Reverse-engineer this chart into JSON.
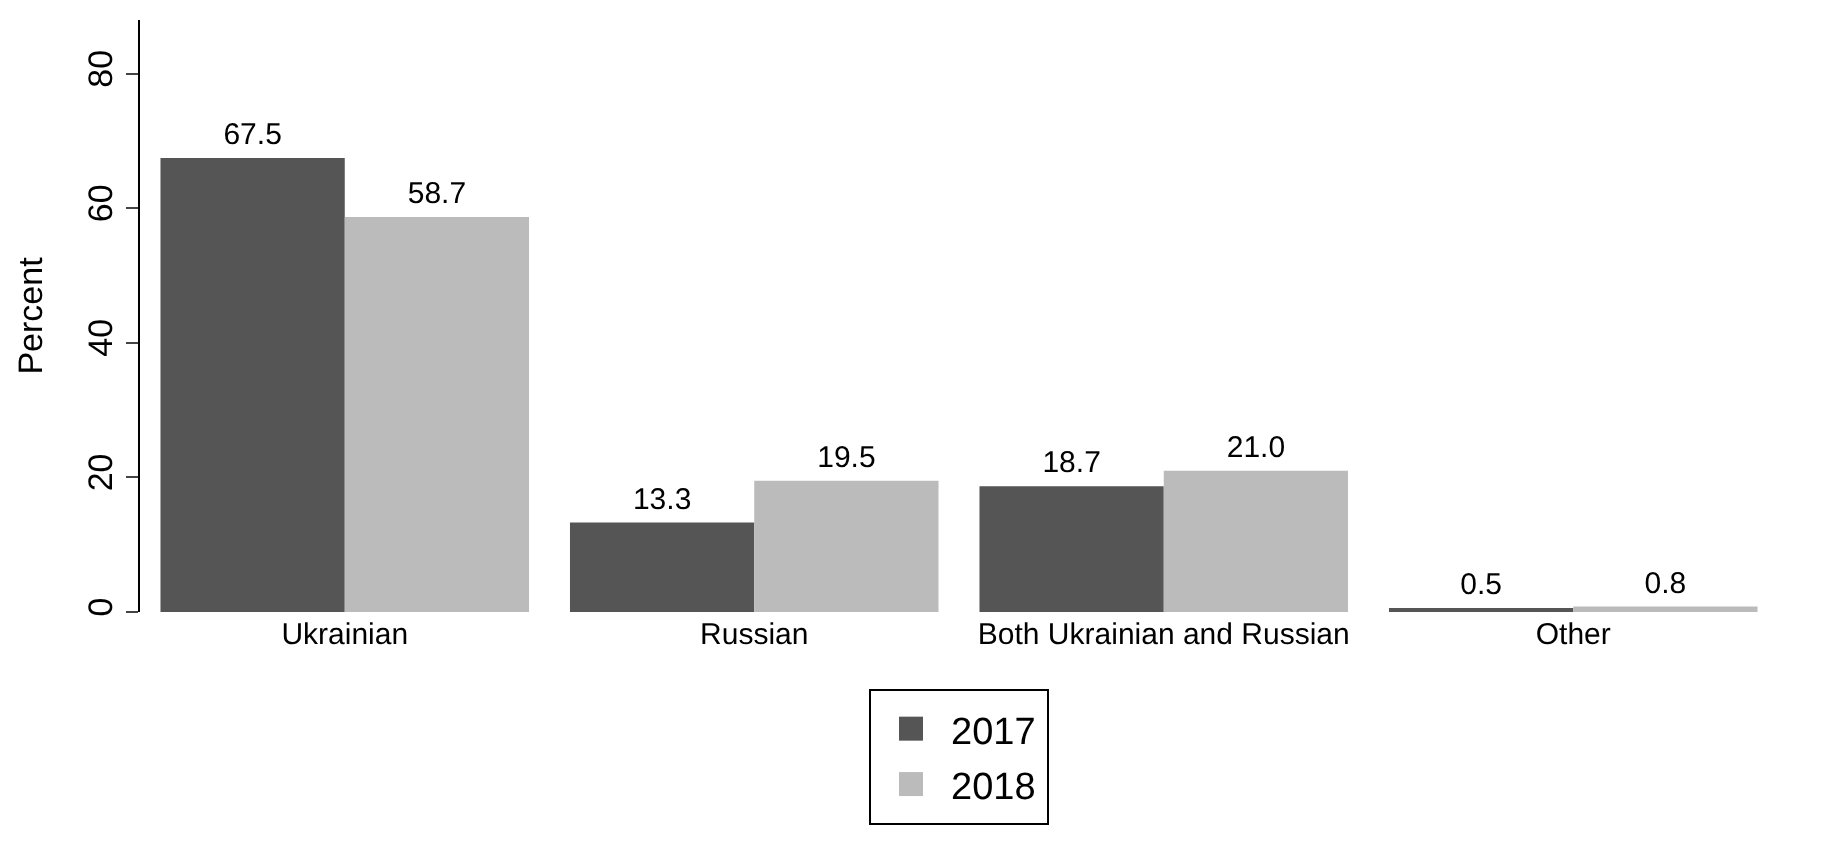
{
  "chart_data": {
    "type": "bar",
    "ylabel": "Percent",
    "categories": [
      "Ukrainian",
      "Russian",
      "Both Ukrainian and Russian",
      "Other"
    ],
    "series": [
      {
        "name": "2017",
        "color": "#555555",
        "values": [
          67.5,
          13.3,
          18.7,
          0.5
        ]
      },
      {
        "name": "2018",
        "color": "#bbbbbb",
        "values": [
          58.7,
          19.5,
          21.0,
          0.8
        ]
      }
    ],
    "value_labels": [
      [
        "67.5",
        "13.3",
        "18.7",
        "0.5"
      ],
      [
        "58.7",
        "19.5",
        "21.0",
        "0.8"
      ]
    ],
    "ylim": [
      0,
      88
    ],
    "yticks": [
      0,
      20,
      40,
      60,
      80
    ],
    "legend": "bottom"
  }
}
